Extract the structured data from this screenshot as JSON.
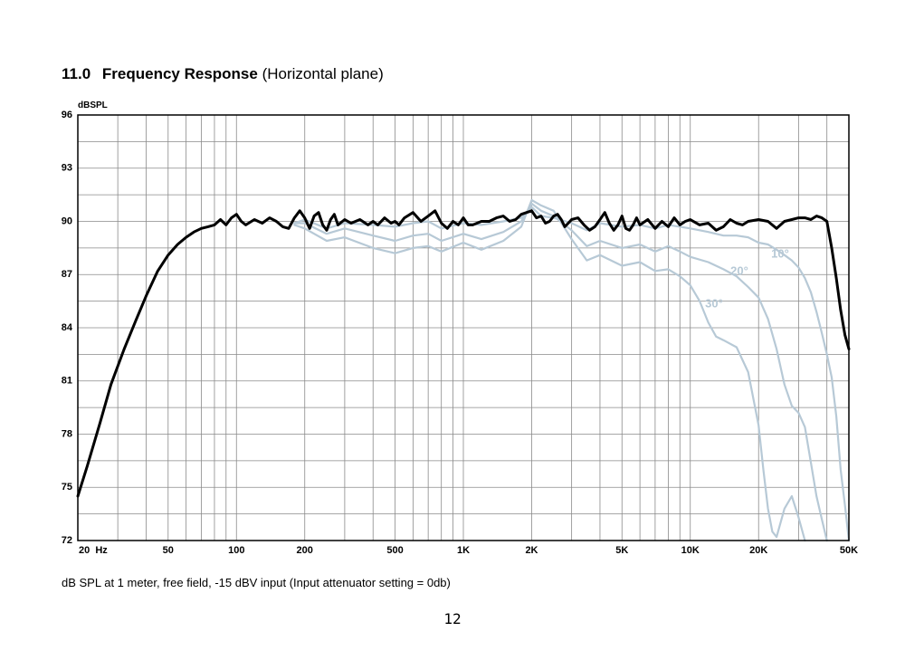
{
  "page": {
    "heading_number": "11.0",
    "heading_title": "Frequency Response",
    "heading_suffix": "(Horizontal plane)",
    "caption": "dB SPL at 1 meter, free field, -15 dBV input (Input attenuator setting = 0db)",
    "page_number": "12"
  },
  "colors": {
    "on_axis": "#000000",
    "off_axis": "#b7c9d6",
    "grid": "#8a8a8a",
    "frame": "#000000"
  },
  "chart_data": {
    "type": "line",
    "title": "",
    "xlabel": "",
    "ylabel": "dBSPL",
    "x_scale": "log",
    "xlim": [
      20,
      50000
    ],
    "ylim": [
      72,
      96
    ],
    "grid": true,
    "x_ticks": [
      {
        "value": 20,
        "label": "20  Hz"
      },
      {
        "value": 50,
        "label": "50"
      },
      {
        "value": 100,
        "label": "100"
      },
      {
        "value": 200,
        "label": "200"
      },
      {
        "value": 500,
        "label": "500"
      },
      {
        "value": 1000,
        "label": "1K"
      },
      {
        "value": 2000,
        "label": "2K"
      },
      {
        "value": 5000,
        "label": "5K"
      },
      {
        "value": 10000,
        "label": "10K"
      },
      {
        "value": 20000,
        "label": "20K"
      },
      {
        "value": 50000,
        "label": "50K"
      }
    ],
    "y_ticks": [
      72,
      75,
      78,
      81,
      84,
      87,
      90,
      93,
      96
    ],
    "series": [
      {
        "name": "",
        "role": "on_axis",
        "points": [
          [
            20,
            74.5
          ],
          [
            22,
            76.2
          ],
          [
            25,
            78.6
          ],
          [
            28,
            80.8
          ],
          [
            32,
            82.8
          ],
          [
            36,
            84.4
          ],
          [
            40,
            85.8
          ],
          [
            45,
            87.2
          ],
          [
            50,
            88.1
          ],
          [
            55,
            88.7
          ],
          [
            60,
            89.1
          ],
          [
            65,
            89.4
          ],
          [
            70,
            89.6
          ],
          [
            75,
            89.7
          ],
          [
            80,
            89.8
          ],
          [
            85,
            90.1
          ],
          [
            90,
            89.8
          ],
          [
            95,
            90.2
          ],
          [
            100,
            90.4
          ],
          [
            105,
            90.0
          ],
          [
            110,
            89.8
          ],
          [
            120,
            90.1
          ],
          [
            130,
            89.9
          ],
          [
            140,
            90.2
          ],
          [
            150,
            90.0
          ],
          [
            160,
            89.7
          ],
          [
            170,
            89.6
          ],
          [
            180,
            90.2
          ],
          [
            190,
            90.6
          ],
          [
            200,
            90.2
          ],
          [
            210,
            89.6
          ],
          [
            220,
            90.3
          ],
          [
            230,
            90.5
          ],
          [
            240,
            89.8
          ],
          [
            250,
            89.5
          ],
          [
            260,
            90.1
          ],
          [
            270,
            90.4
          ],
          [
            280,
            89.8
          ],
          [
            300,
            90.1
          ],
          [
            320,
            89.9
          ],
          [
            350,
            90.1
          ],
          [
            380,
            89.8
          ],
          [
            400,
            90.0
          ],
          [
            420,
            89.8
          ],
          [
            450,
            90.2
          ],
          [
            480,
            89.9
          ],
          [
            500,
            90.0
          ],
          [
            520,
            89.8
          ],
          [
            550,
            90.2
          ],
          [
            600,
            90.5
          ],
          [
            650,
            90.0
          ],
          [
            700,
            90.3
          ],
          [
            750,
            90.6
          ],
          [
            800,
            89.9
          ],
          [
            850,
            89.6
          ],
          [
            900,
            90.0
          ],
          [
            950,
            89.8
          ],
          [
            1000,
            90.2
          ],
          [
            1050,
            89.8
          ],
          [
            1100,
            89.8
          ],
          [
            1200,
            90.0
          ],
          [
            1300,
            90.0
          ],
          [
            1400,
            90.2
          ],
          [
            1500,
            90.3
          ],
          [
            1600,
            90.0
          ],
          [
            1700,
            90.1
          ],
          [
            1800,
            90.4
          ],
          [
            1900,
            90.5
          ],
          [
            2000,
            90.6
          ],
          [
            2100,
            90.2
          ],
          [
            2200,
            90.3
          ],
          [
            2300,
            89.9
          ],
          [
            2400,
            90.0
          ],
          [
            2500,
            90.3
          ],
          [
            2600,
            90.4
          ],
          [
            2700,
            90.1
          ],
          [
            2800,
            89.7
          ],
          [
            2900,
            89.9
          ],
          [
            3000,
            90.1
          ],
          [
            3200,
            90.2
          ],
          [
            3400,
            89.8
          ],
          [
            3600,
            89.5
          ],
          [
            3800,
            89.7
          ],
          [
            4000,
            90.1
          ],
          [
            4200,
            90.5
          ],
          [
            4400,
            89.9
          ],
          [
            4600,
            89.5
          ],
          [
            4800,
            89.8
          ],
          [
            5000,
            90.3
          ],
          [
            5200,
            89.6
          ],
          [
            5400,
            89.5
          ],
          [
            5600,
            89.8
          ],
          [
            5800,
            90.2
          ],
          [
            6000,
            89.8
          ],
          [
            6500,
            90.1
          ],
          [
            7000,
            89.6
          ],
          [
            7500,
            90.0
          ],
          [
            8000,
            89.7
          ],
          [
            8500,
            90.2
          ],
          [
            9000,
            89.8
          ],
          [
            9500,
            90.0
          ],
          [
            10000,
            90.1
          ],
          [
            11000,
            89.8
          ],
          [
            12000,
            89.9
          ],
          [
            13000,
            89.5
          ],
          [
            14000,
            89.7
          ],
          [
            15000,
            90.1
          ],
          [
            16000,
            89.9
          ],
          [
            17000,
            89.8
          ],
          [
            18000,
            90.0
          ],
          [
            20000,
            90.1
          ],
          [
            22000,
            90.0
          ],
          [
            24000,
            89.6
          ],
          [
            26000,
            90.0
          ],
          [
            28000,
            90.1
          ],
          [
            30000,
            90.2
          ],
          [
            32000,
            90.2
          ],
          [
            34000,
            90.1
          ],
          [
            36000,
            90.3
          ],
          [
            38000,
            90.2
          ],
          [
            40000,
            90.0
          ],
          [
            42000,
            88.5
          ],
          [
            44000,
            86.8
          ],
          [
            46000,
            85.0
          ],
          [
            48000,
            83.6
          ],
          [
            50000,
            82.8
          ]
        ]
      },
      {
        "name": "10°",
        "role": "off_axis",
        "points": [
          [
            180,
            89.9
          ],
          [
            200,
            90.1
          ],
          [
            250,
            89.6
          ],
          [
            300,
            89.9
          ],
          [
            400,
            89.8
          ],
          [
            500,
            89.7
          ],
          [
            600,
            89.9
          ],
          [
            700,
            90.0
          ],
          [
            800,
            89.6
          ],
          [
            1000,
            89.9
          ],
          [
            1200,
            89.8
          ],
          [
            1500,
            90.0
          ],
          [
            1800,
            90.2
          ],
          [
            2000,
            90.8
          ],
          [
            2200,
            90.3
          ],
          [
            2500,
            90.2
          ],
          [
            3000,
            89.9
          ],
          [
            3500,
            89.5
          ],
          [
            4000,
            89.9
          ],
          [
            5000,
            89.7
          ],
          [
            6000,
            89.8
          ],
          [
            7000,
            89.6
          ],
          [
            8000,
            89.8
          ],
          [
            9000,
            89.7
          ],
          [
            10000,
            89.6
          ],
          [
            12000,
            89.4
          ],
          [
            14000,
            89.2
          ],
          [
            16000,
            89.2
          ],
          [
            18000,
            89.1
          ],
          [
            20000,
            88.8
          ],
          [
            22000,
            88.7
          ],
          [
            24000,
            88.4
          ],
          [
            26000,
            88.1
          ],
          [
            28000,
            87.8
          ],
          [
            30000,
            87.4
          ],
          [
            32000,
            86.8
          ],
          [
            34000,
            86.0
          ],
          [
            36000,
            84.9
          ],
          [
            38000,
            83.7
          ],
          [
            40000,
            82.5
          ],
          [
            42000,
            81.2
          ],
          [
            44000,
            79.0
          ],
          [
            46000,
            76.0
          ],
          [
            48000,
            74.0
          ],
          [
            50000,
            72.0
          ]
        ]
      },
      {
        "name": "20°",
        "role": "off_axis",
        "points": [
          [
            180,
            89.9
          ],
          [
            200,
            89.9
          ],
          [
            250,
            89.3
          ],
          [
            300,
            89.6
          ],
          [
            400,
            89.2
          ],
          [
            500,
            88.9
          ],
          [
            600,
            89.2
          ],
          [
            700,
            89.3
          ],
          [
            800,
            88.9
          ],
          [
            1000,
            89.3
          ],
          [
            1200,
            89.0
          ],
          [
            1500,
            89.4
          ],
          [
            1800,
            90.0
          ],
          [
            2000,
            91.0
          ],
          [
            2200,
            90.6
          ],
          [
            2500,
            90.3
          ],
          [
            3000,
            89.5
          ],
          [
            3500,
            88.6
          ],
          [
            4000,
            88.9
          ],
          [
            5000,
            88.5
          ],
          [
            6000,
            88.7
          ],
          [
            7000,
            88.3
          ],
          [
            8000,
            88.6
          ],
          [
            9000,
            88.3
          ],
          [
            10000,
            88.0
          ],
          [
            12000,
            87.7
          ],
          [
            14000,
            87.3
          ],
          [
            16000,
            86.9
          ],
          [
            18000,
            86.3
          ],
          [
            20000,
            85.7
          ],
          [
            22000,
            84.5
          ],
          [
            24000,
            82.8
          ],
          [
            26000,
            80.8
          ],
          [
            28000,
            79.6
          ],
          [
            30000,
            79.2
          ],
          [
            32000,
            78.4
          ],
          [
            34000,
            76.4
          ],
          [
            36000,
            74.5
          ],
          [
            38000,
            73.2
          ],
          [
            40000,
            72.0
          ]
        ]
      },
      {
        "name": "30°",
        "role": "off_axis",
        "points": [
          [
            180,
            89.8
          ],
          [
            200,
            89.6
          ],
          [
            250,
            88.9
          ],
          [
            300,
            89.1
          ],
          [
            400,
            88.5
          ],
          [
            500,
            88.2
          ],
          [
            600,
            88.5
          ],
          [
            700,
            88.6
          ],
          [
            800,
            88.3
          ],
          [
            1000,
            88.8
          ],
          [
            1200,
            88.4
          ],
          [
            1500,
            88.9
          ],
          [
            1800,
            89.7
          ],
          [
            2000,
            91.2
          ],
          [
            2200,
            90.9
          ],
          [
            2500,
            90.6
          ],
          [
            3000,
            89.0
          ],
          [
            3500,
            87.8
          ],
          [
            4000,
            88.1
          ],
          [
            5000,
            87.5
          ],
          [
            6000,
            87.7
          ],
          [
            7000,
            87.2
          ],
          [
            8000,
            87.3
          ],
          [
            9000,
            86.9
          ],
          [
            10000,
            86.4
          ],
          [
            11000,
            85.5
          ],
          [
            12000,
            84.3
          ],
          [
            13000,
            83.5
          ],
          [
            14000,
            83.3
          ],
          [
            16000,
            82.9
          ],
          [
            18000,
            81.5
          ],
          [
            20000,
            78.5
          ],
          [
            21000,
            76.0
          ],
          [
            22000,
            73.8
          ],
          [
            23000,
            72.5
          ],
          [
            24000,
            72.2
          ],
          [
            26000,
            73.8
          ],
          [
            28000,
            74.5
          ],
          [
            30000,
            73.3
          ],
          [
            32000,
            72.0
          ]
        ]
      }
    ]
  }
}
